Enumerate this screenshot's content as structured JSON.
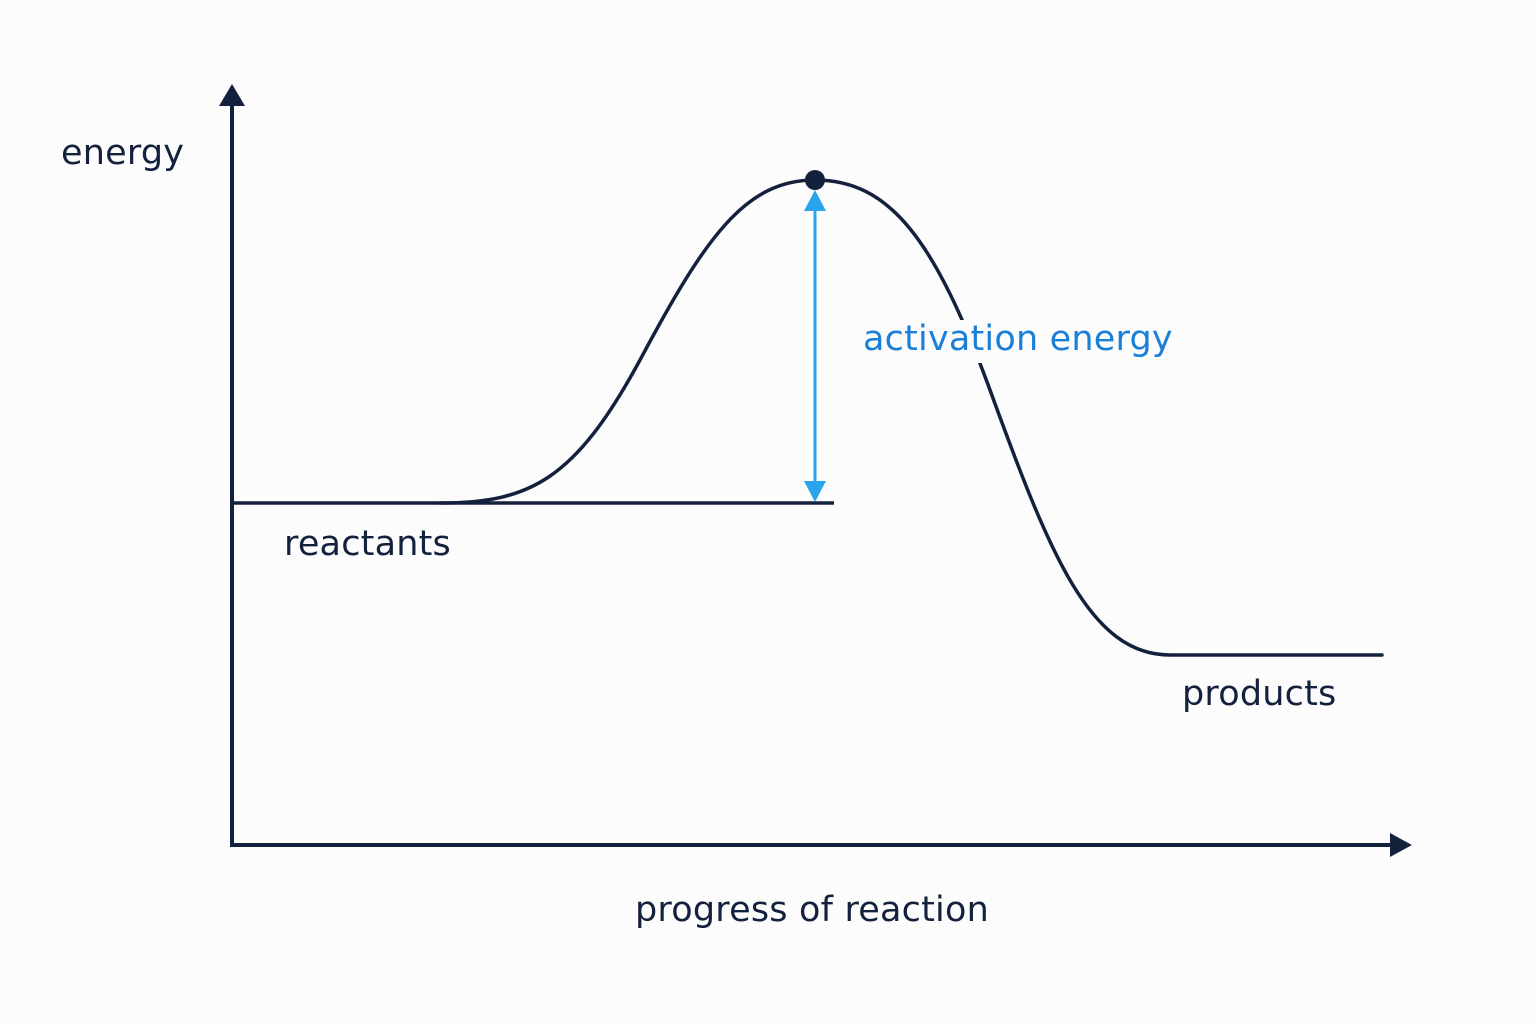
{
  "labels": {
    "y_axis": "energy",
    "x_axis": "progress of reaction",
    "reactants": "reactants",
    "products": "products",
    "activation_energy": "activation energy"
  },
  "colors": {
    "ink": "#14213d",
    "accent_arrow": "#2aa4ea",
    "accent_text": "#1a7fd6",
    "background": "#fcfcfd"
  }
}
